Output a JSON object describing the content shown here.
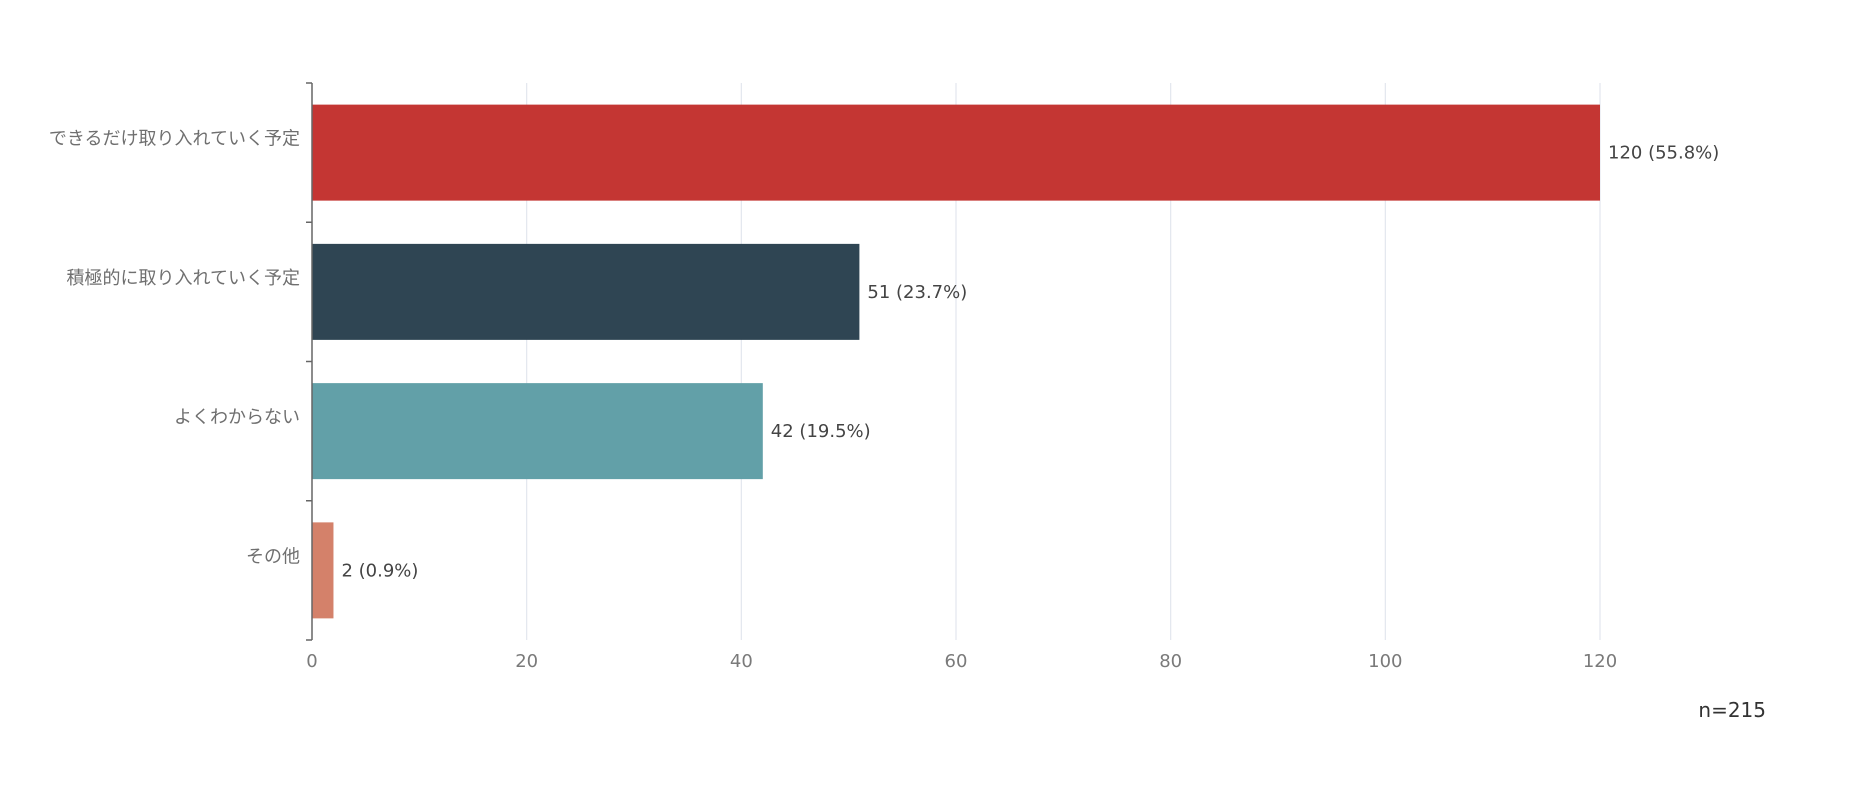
{
  "chart_data": {
    "type": "bar",
    "orientation": "horizontal",
    "categories": [
      "できるだけ取り入れていく予定",
      "積極的に取り入れていく予定",
      "よくわからない",
      "その他"
    ],
    "values": [
      120,
      51,
      42,
      2
    ],
    "data_labels": [
      "120 (55.8%)",
      "51 (23.7%)",
      "42 (19.5%)",
      "2 (0.9%)"
    ],
    "colors": [
      "#c43633",
      "#2f4553",
      "#62a0a8",
      "#d4816a"
    ],
    "x_ticks": [
      "0",
      "20",
      "40",
      "60",
      "80",
      "100",
      "120"
    ],
    "xlim": [
      0,
      120
    ],
    "grid": true,
    "legend": "none",
    "note": "n=215"
  }
}
